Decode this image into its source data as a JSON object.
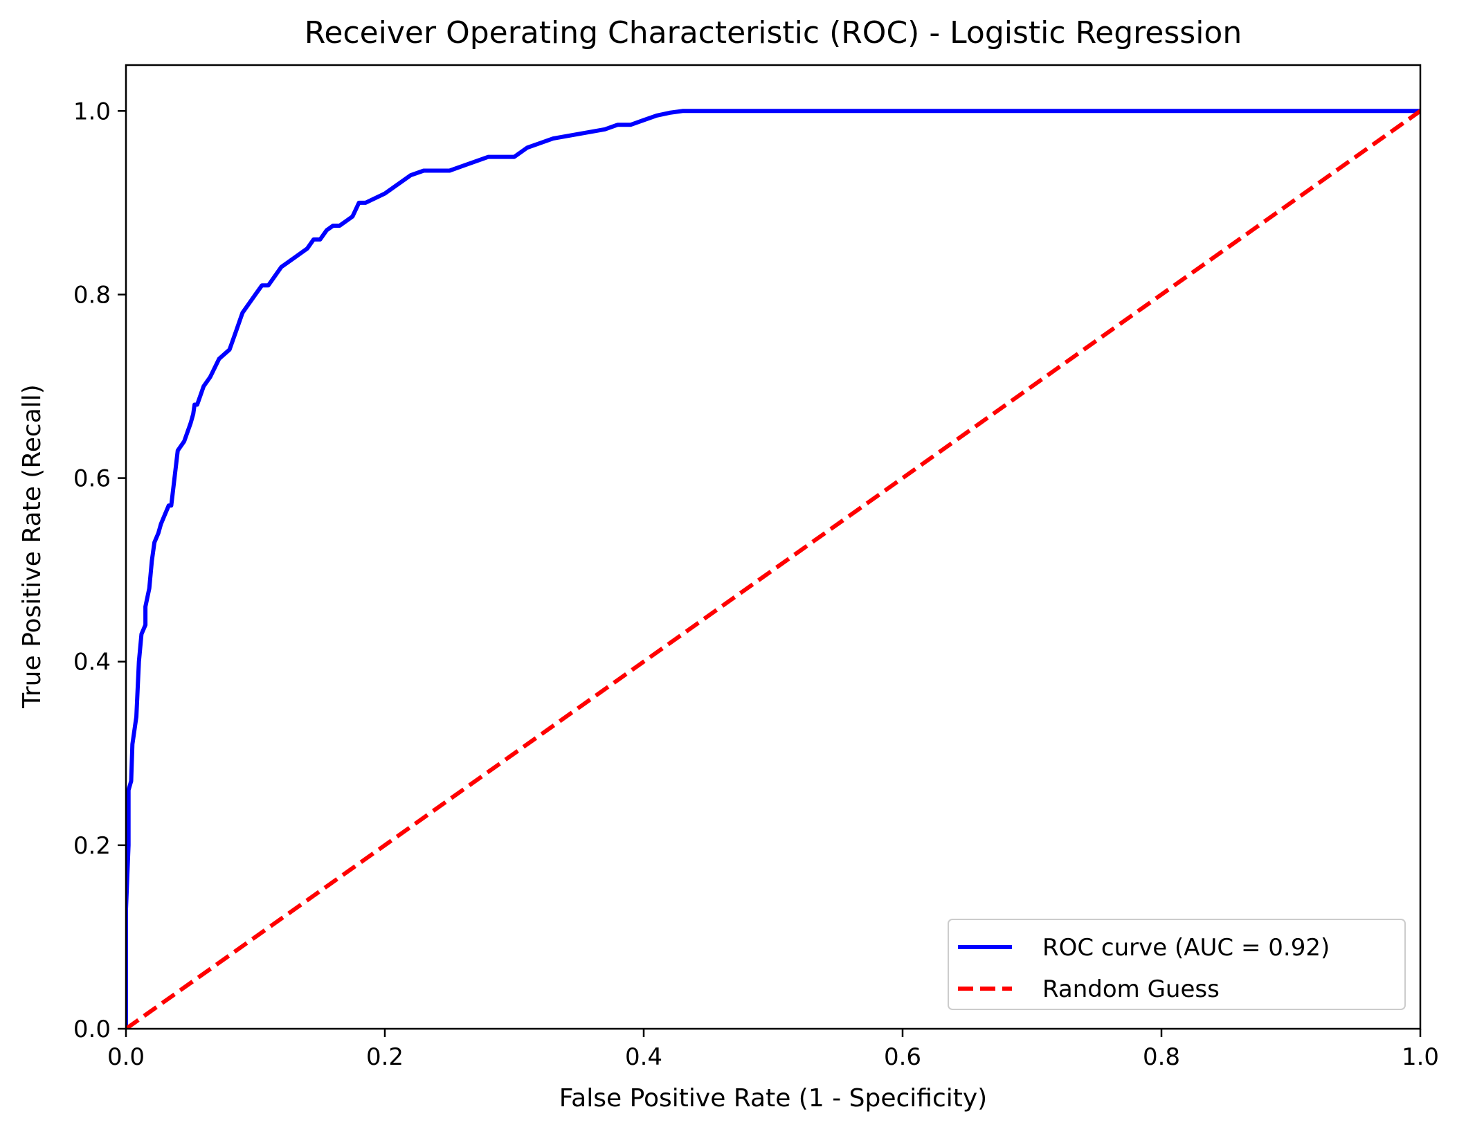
{
  "chart_data": {
    "type": "line",
    "title": "Receiver Operating Characteristic (ROC) - Logistic Regression",
    "xlabel": "False Positive Rate (1 - Specificity)",
    "ylabel": "True Positive Rate (Recall)",
    "xlim": [
      0.0,
      1.05
    ],
    "ylim": [
      0.0,
      1.05
    ],
    "x_ticks": [
      "0.0",
      "0.2",
      "0.4",
      "0.6",
      "0.8",
      "1.0"
    ],
    "y_ticks": [
      "0.0",
      "0.2",
      "0.4",
      "0.6",
      "0.8",
      "1.0"
    ],
    "grid": false,
    "legend_position": "bottom-right",
    "series": [
      {
        "name": "ROC curve (AUC = 0.92)",
        "color": "#0000ff",
        "style": "solid",
        "x": [
          0.0,
          0.0,
          0.002,
          0.002,
          0.004,
          0.005,
          0.007,
          0.008,
          0.01,
          0.012,
          0.015,
          0.015,
          0.018,
          0.02,
          0.022,
          0.025,
          0.027,
          0.03,
          0.033,
          0.035,
          0.04,
          0.045,
          0.05,
          0.052,
          0.053,
          0.055,
          0.06,
          0.065,
          0.072,
          0.08,
          0.085,
          0.09,
          0.095,
          0.1,
          0.105,
          0.11,
          0.115,
          0.12,
          0.13,
          0.14,
          0.145,
          0.15,
          0.155,
          0.16,
          0.165,
          0.17,
          0.175,
          0.18,
          0.185,
          0.2,
          0.21,
          0.22,
          0.23,
          0.25,
          0.26,
          0.27,
          0.28,
          0.3,
          0.31,
          0.32,
          0.33,
          0.35,
          0.37,
          0.38,
          0.39,
          0.4,
          0.41,
          0.42,
          0.43,
          0.45,
          0.47,
          0.5,
          0.52,
          0.56,
          0.6,
          0.7,
          0.8,
          0.9,
          1.0
        ],
        "y": [
          0.0,
          0.13,
          0.2,
          0.26,
          0.27,
          0.31,
          0.33,
          0.34,
          0.4,
          0.43,
          0.44,
          0.46,
          0.48,
          0.51,
          0.53,
          0.54,
          0.55,
          0.56,
          0.57,
          0.57,
          0.63,
          0.64,
          0.66,
          0.67,
          0.68,
          0.68,
          0.7,
          0.71,
          0.73,
          0.74,
          0.76,
          0.78,
          0.79,
          0.8,
          0.81,
          0.81,
          0.82,
          0.83,
          0.84,
          0.85,
          0.86,
          0.86,
          0.87,
          0.875,
          0.875,
          0.88,
          0.885,
          0.9,
          0.9,
          0.91,
          0.92,
          0.93,
          0.935,
          0.935,
          0.94,
          0.945,
          0.95,
          0.95,
          0.96,
          0.965,
          0.97,
          0.975,
          0.98,
          0.985,
          0.985,
          0.99,
          0.995,
          0.998,
          1.0,
          1.0,
          1.0,
          1.0,
          1.0,
          1.0,
          1.0,
          1.0,
          1.0,
          1.0,
          1.0
        ]
      },
      {
        "name": "Random Guess",
        "color": "#ff0000",
        "style": "dashed",
        "x": [
          0.0,
          1.0
        ],
        "y": [
          0.0,
          1.0
        ]
      }
    ]
  }
}
